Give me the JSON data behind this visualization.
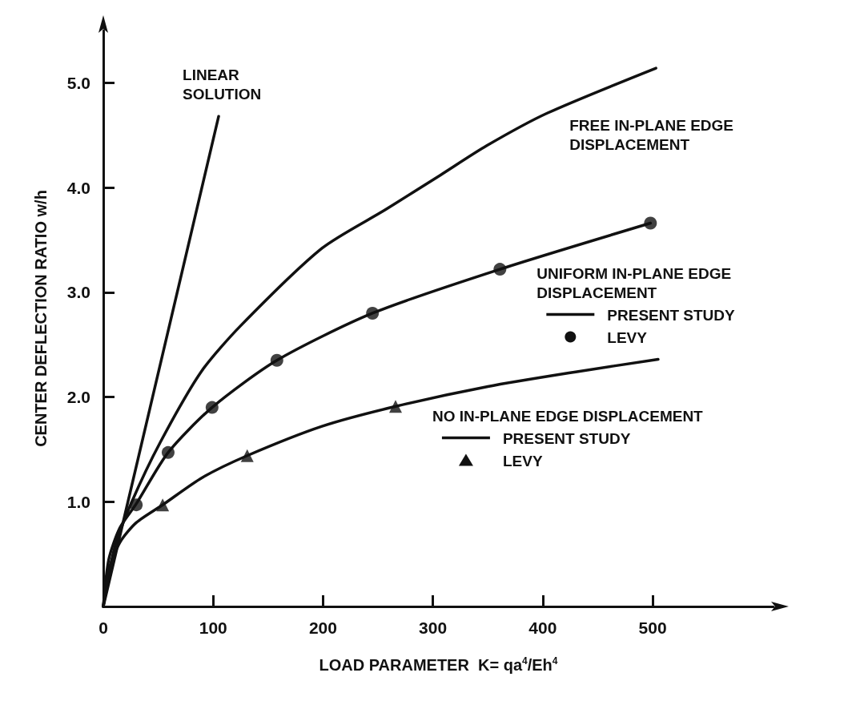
{
  "chart_data": {
    "type": "line",
    "xlabel": "LOAD PARAMETER  K= qa$^{4}$/Eh$^{4}$",
    "ylabel": "CENTER DEFLECTION RATIO w/h",
    "xlim": [
      0,
      610
    ],
    "ylim": [
      0,
      5.5
    ],
    "xticks": [
      0,
      100,
      200,
      300,
      400,
      500
    ],
    "yticks": [
      {
        "value": 1,
        "label": "1.0"
      },
      {
        "value": 2,
        "label": "2.0"
      },
      {
        "value": 3,
        "label": "3.0"
      },
      {
        "value": 4,
        "label": "4.0"
      },
      {
        "value": 5,
        "label": "5.0"
      }
    ],
    "grid": false,
    "legend": "right",
    "series": [
      {
        "type": "line",
        "color": "#111111",
        "marker": "none",
        "x": [
          0,
          105
        ],
        "values": [
          0,
          4.68
        ]
      },
      {
        "type": "line",
        "color": "#111111",
        "marker": "none",
        "x": [
          0,
          10,
          26,
          52,
          89,
          125,
          199,
          257,
          307,
          349,
          404,
          503
        ],
        "values": [
          0,
          0.55,
          1.0,
          1.57,
          2.24,
          2.68,
          3.42,
          3.79,
          4.12,
          4.4,
          4.71,
          5.14
        ]
      },
      {
        "type": "line",
        "name": "PRESENT STUDY",
        "color": "#111111",
        "marker": "none",
        "x": [
          0,
          5,
          15,
          30,
          59,
          99,
          158,
          245,
          361,
          498
        ],
        "values": [
          0,
          0.45,
          0.75,
          0.98,
          1.47,
          1.9,
          2.35,
          2.8,
          3.22,
          3.66
        ]
      },
      {
        "type": "scatter",
        "name": "LEVY",
        "color": "#111111",
        "marker": "circle",
        "x": [
          30,
          59,
          99,
          158,
          245,
          361,
          498
        ],
        "values": [
          0.97,
          1.47,
          1.9,
          2.35,
          2.8,
          3.22,
          3.66
        ]
      },
      {
        "type": "line",
        "name": "PRESENT STUDY",
        "color": "#111111",
        "marker": "none",
        "x": [
          0,
          5,
          15,
          30,
          54,
          90,
          131,
          199,
          266,
          350,
          430,
          505
        ],
        "values": [
          0,
          0.35,
          0.61,
          0.8,
          0.97,
          1.23,
          1.44,
          1.72,
          1.91,
          2.1,
          2.24,
          2.36
        ]
      },
      {
        "type": "scatter",
        "name": "LEVY",
        "color": "#111111",
        "marker": "triangle",
        "x": [
          54,
          131,
          266
        ],
        "values": [
          0.97,
          1.44,
          1.91
        ]
      }
    ],
    "annotations": [
      "LINEAR\nSOLUTION",
      "FREE IN-PLANE EDGE\nDISPLACEMENT",
      "UNIFORM IN-PLANE EDGE\nDISPLACEMENT",
      "NO IN-PLANE EDGE DISPLACEMENT"
    ]
  }
}
